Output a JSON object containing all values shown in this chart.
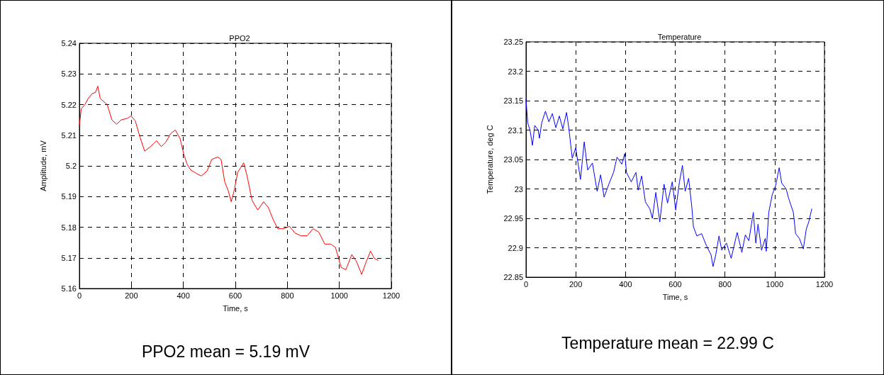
{
  "chart_data": [
    {
      "type": "line",
      "title": "PPO2",
      "xlabel": "Time, s",
      "ylabel": "Amplitude, mV",
      "annotations": [
        "PPO2 mean = 5.19 mV"
      ],
      "grid": true,
      "marker": "none",
      "line_style": "solid",
      "xlim": [
        0,
        1200
      ],
      "xticks": [
        0,
        200,
        400,
        600,
        800,
        1000,
        1200
      ],
      "ylim": [
        5.16,
        5.24
      ],
      "yticks": [
        5.16,
        5.17,
        5.18,
        5.19,
        5.2,
        5.21,
        5.22,
        5.23,
        5.24
      ],
      "series": [
        {
          "color": "#ff0000",
          "x": [
            0,
            7,
            21,
            34,
            48,
            62,
            71,
            80,
            93,
            107,
            125,
            143,
            161,
            184,
            199,
            215,
            233,
            251,
            274,
            297,
            315,
            333,
            351,
            369,
            387,
            401,
            414,
            428,
            451,
            469,
            491,
            509,
            532,
            545,
            559,
            573,
            584,
            595,
            609,
            632,
            646,
            664,
            686,
            709,
            727,
            745,
            763,
            786,
            808,
            831,
            853,
            876,
            899,
            921,
            944,
            967,
            985,
            998,
            1007,
            1025,
            1048,
            1066,
            1086,
            1102,
            1120,
            1134,
            1149
          ],
          "values": [
            5.213,
            5.2186,
            5.22,
            5.222,
            5.2235,
            5.224,
            5.226,
            5.222,
            5.221,
            5.22,
            5.215,
            5.2136,
            5.215,
            5.2155,
            5.2163,
            5.2147,
            5.2094,
            5.2048,
            5.2063,
            5.2082,
            5.2063,
            5.2078,
            5.2105,
            5.2117,
            5.209,
            5.204,
            5.2006,
            5.1987,
            5.1975,
            5.1967,
            5.1983,
            5.2021,
            5.2029,
            5.2021,
            5.1948,
            5.1918,
            5.1883,
            5.1918,
            5.1979,
            5.201,
            5.1964,
            5.1888,
            5.1856,
            5.1883,
            5.1864,
            5.1826,
            5.1795,
            5.1795,
            5.1803,
            5.178,
            5.1772,
            5.1772,
            5.1795,
            5.1784,
            5.1745,
            5.1745,
            5.1734,
            5.1696,
            5.1669,
            5.1661,
            5.1711,
            5.1688,
            5.1646,
            5.1684,
            5.1722,
            5.1699,
            5.1692
          ]
        }
      ]
    },
    {
      "type": "line",
      "title": "Temperature",
      "xlabel": "Time, s",
      "ylabel": "Temperature, deg C",
      "annotations": [
        "Temperature mean = 22.99 C"
      ],
      "grid": true,
      "marker": "none",
      "line_style": "solid",
      "xlim": [
        0,
        1200
      ],
      "xticks": [
        0,
        200,
        400,
        600,
        800,
        1000,
        1200
      ],
      "ylim": [
        22.85,
        23.25
      ],
      "yticks": [
        22.85,
        22.9,
        22.95,
        23,
        23.05,
        23.1,
        23.15,
        23.2,
        23.25
      ],
      "series": [
        {
          "color": "#0000ff",
          "x": [
            0,
            7,
            16,
            26,
            35,
            49,
            54,
            63,
            78,
            92,
            106,
            120,
            134,
            148,
            163,
            172,
            186,
            200,
            219,
            234,
            248,
            267,
            286,
            300,
            314,
            333,
            352,
            366,
            385,
            397,
            404,
            423,
            442,
            451,
            465,
            480,
            498,
            508,
            522,
            538,
            555,
            569,
            588,
            602,
            617,
            629,
            640,
            654,
            667,
            673,
            687,
            706,
            725,
            744,
            752,
            763,
            776,
            787,
            806,
            825,
            849,
            868,
            882,
            896,
            914,
            924,
            933,
            947,
            962,
            966,
            976,
            990,
            1004,
            1018,
            1028,
            1046,
            1056,
            1075,
            1084,
            1099,
            1115,
            1127,
            1137,
            1149
          ],
          "values": [
            23.152,
            23.112,
            23.1,
            23.074,
            23.108,
            23.1,
            23.086,
            23.112,
            23.132,
            23.114,
            23.128,
            23.104,
            23.124,
            23.102,
            23.13,
            23.104,
            23.052,
            23.07,
            23.016,
            23.08,
            23.032,
            23.044,
            22.996,
            23.024,
            22.986,
            23.008,
            23.028,
            23.054,
            23.042,
            23.06,
            23.028,
            23.012,
            23.028,
            22.998,
            23.022,
            22.978,
            22.966,
            22.95,
            22.994,
            22.944,
            23.008,
            22.976,
            23.012,
            22.964,
            23.012,
            23.04,
            22.996,
            23.018,
            22.968,
            22.936,
            22.92,
            22.924,
            22.904,
            22.888,
            22.868,
            22.888,
            22.92,
            22.896,
            22.908,
            22.882,
            22.926,
            22.892,
            22.922,
            22.912,
            22.96,
            22.908,
            22.94,
            22.896,
            22.916,
            22.894,
            22.96,
            22.99,
            23.006,
            23.036,
            23.01,
            23,
            22.984,
            22.96,
            22.924,
            22.916,
            22.898,
            22.932,
            22.944,
            22.966
          ]
        }
      ]
    }
  ]
}
